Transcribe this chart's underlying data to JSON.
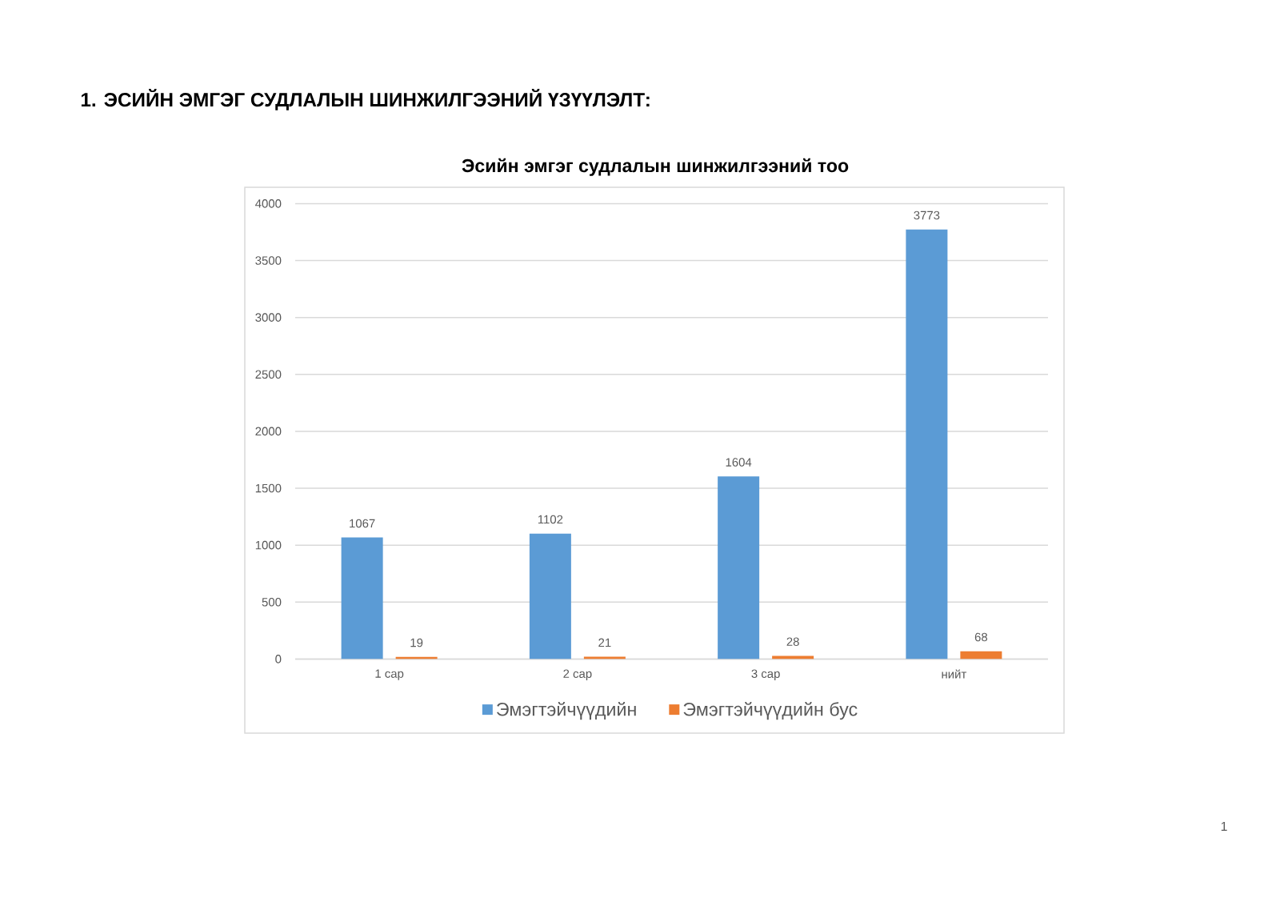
{
  "chart_data": {
    "type": "bar",
    "title": "Эсийн эмгэг судлалын шинжилгээний тоо",
    "categories": [
      "1 сар",
      "2 сар",
      "3 сар",
      "нийт"
    ],
    "series": [
      {
        "name": "Эмэгтэйчүүдийн",
        "color": "#5b9bd5",
        "values": [
          1067,
          1102,
          1604,
          3773
        ]
      },
      {
        "name": "Эмэгтэйчүүдийн бус",
        "color": "#ed7d31",
        "values": [
          19,
          21,
          28,
          68
        ]
      }
    ],
    "ylim": [
      0,
      4000
    ],
    "yticks": [
      0,
      500,
      1000,
      1500,
      2000,
      2500,
      3000,
      3500,
      4000
    ],
    "grid": "y",
    "legend": "bottom",
    "data_labels": true,
    "annotations": [
      "1. ЭСИЙН ЭМГЭГ СУДЛАЛЫН ШИНЖИЛГЭЭНИЙ ҮЗҮҮЛЭЛТ:",
      "1"
    ]
  }
}
